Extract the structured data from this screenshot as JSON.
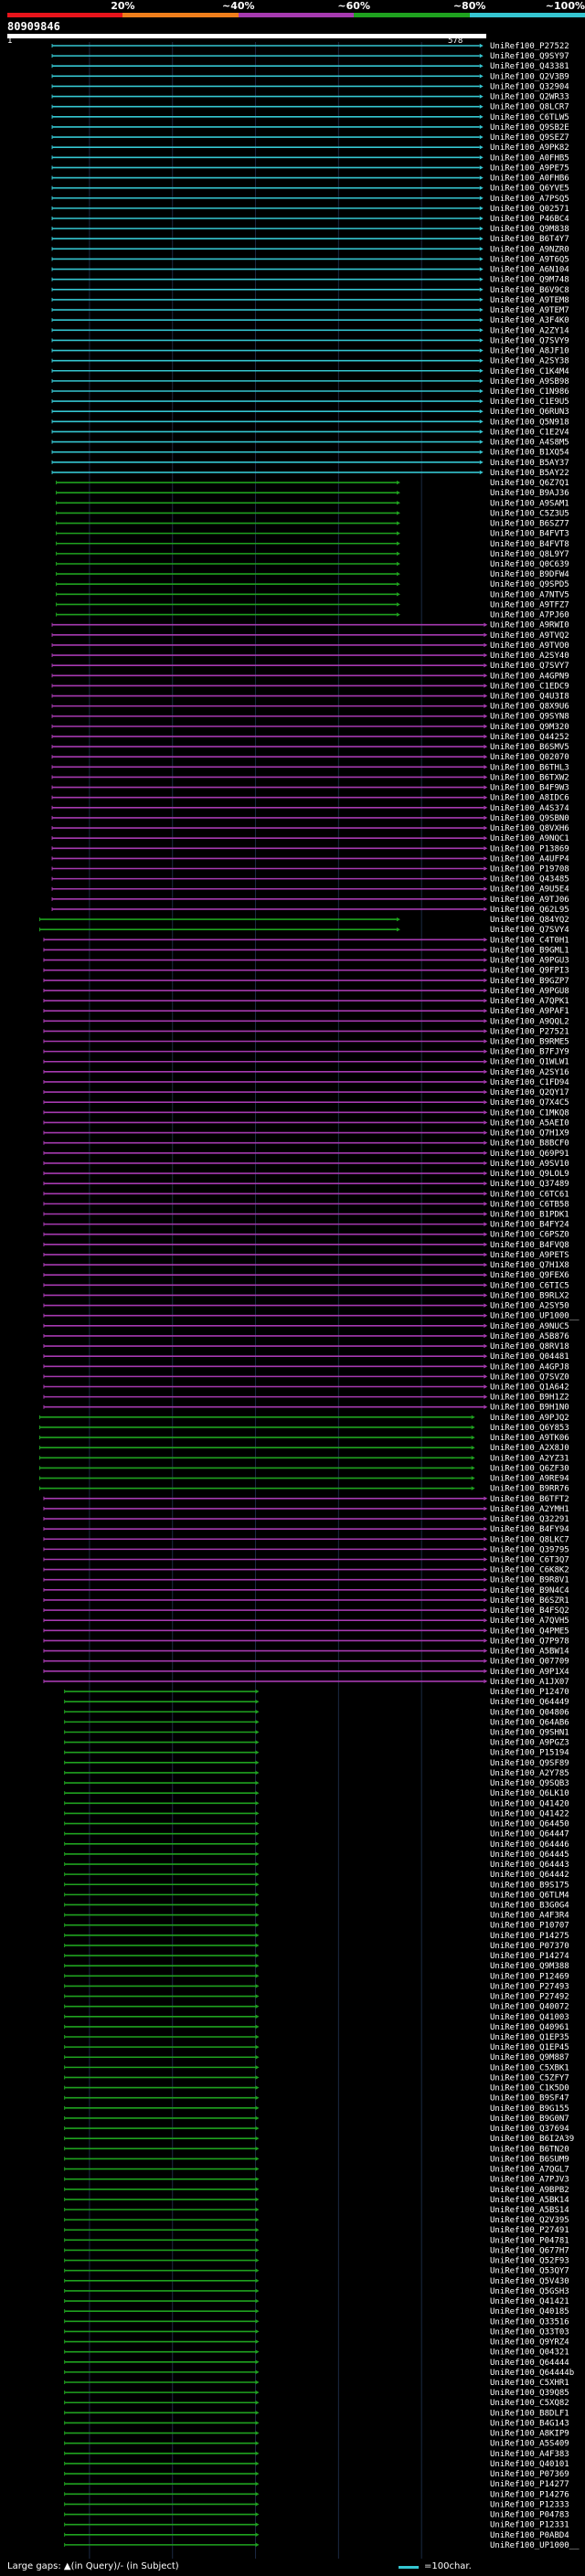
{
  "chart_data": {
    "type": "alignment-map",
    "title": "80909846",
    "query_length": 578,
    "axis_start_label": "1",
    "axis_end_label": "578",
    "scale": [
      {
        "label": "20%",
        "color": "#e8141b"
      },
      {
        "label": "~40%",
        "color": "#f07e1b"
      },
      {
        "label": "~60%",
        "color": "#a63ab0"
      },
      {
        "label": "~80%",
        "color": "#1fa21f"
      },
      {
        "label": "~100%",
        "color": "#35c6d1"
      }
    ],
    "groups": [
      {
        "start": 55,
        "end": 570,
        "color": "#35c6d1",
        "names": [
          "UniRef100_P27522",
          "UniRef100_Q9SY97",
          "UniRef100_Q43381",
          "UniRef100_Q2V3B9",
          "UniRef100_Q32904",
          "UniRef100_Q2WR33",
          "UniRef100_Q8LCR7",
          "UniRef100_C6TLW5",
          "UniRef100_Q9SB2E",
          "UniRef100_Q9SEZ7",
          "UniRef100_A9PK82",
          "UniRef100_A0FHB5",
          "UniRef100_A9PE75",
          "UniRef100_A0FHB6",
          "UniRef100_Q6YVE5",
          "UniRef100_A7PSQ5",
          "UniRef100_Q02571",
          "UniRef100_P46BC4",
          "UniRef100_Q9M838",
          "UniRef100_B6T4Y7",
          "UniRef100_A9NZR0",
          "UniRef100_A9T6Q5",
          "UniRef100_A6N104",
          "UniRef100_Q9M748",
          "UniRef100_B6V9C8",
          "UniRef100_A9TEM8",
          "UniRef100_A9TEM7",
          "UniRef100_A3F4K0",
          "UniRef100_A2ZY14",
          "UniRef100_Q7SVY9",
          "UniRef100_A8JF10",
          "UniRef100_A2SY38",
          "UniRef100_C1K4M4",
          "UniRef100_A9SB98",
          "UniRef100_C1N986",
          "UniRef100_C1E9U5",
          "UniRef100_Q6RUN3",
          "UniRef100_Q5N918",
          "UniRef100_C1E2V4",
          "UniRef100_A4S8M5",
          "UniRef100_B1XQ54",
          "UniRef100_B5AY37",
          "UniRef100_B5AY22"
        ]
      },
      {
        "start": 60,
        "end": 470,
        "color": "#1fa21f",
        "names": [
          "UniRef100_Q6Z7Q1",
          "UniRef100_B9AJ36",
          "UniRef100_A9SAM1",
          "UniRef100_C5Z3U5",
          "UniRef100_B6SZ77",
          "UniRef100_B4FVT3",
          "UniRef100_B4FVT8",
          "UniRef100_Q8L9Y7",
          "UniRef100_Q0C639",
          "UniRef100_B9DFW4",
          "UniRef100_Q9SPD5",
          "UniRef100_A7NTV5",
          "UniRef100_A9TFZ7",
          "UniRef100_A7PJ60"
        ]
      },
      {
        "start": 55,
        "end": 575,
        "color": "#a63ab0",
        "names": [
          "UniRef100_A9RWI0",
          "UniRef100_A9TVQ2",
          "UniRef100_A9TVO0",
          "UniRef100_A2SY40",
          "UniRef100_Q7SVY7",
          "UniRef100_A4GPN9",
          "UniRef100_C1EDC9",
          "UniRef100_Q4U3I8",
          "UniRef100_Q8X9U6",
          "UniRef100_Q9SYN8",
          "UniRef100_Q9M320",
          "UniRef100_Q44252",
          "UniRef100_B6SMV5",
          "UniRef100_Q02070",
          "UniRef100_B6THL3",
          "UniRef100_B6TXW2",
          "UniRef100_B4F9W3",
          "UniRef100_A8IDC6",
          "UniRef100_A4S374",
          "UniRef100_Q9SBN0",
          "UniRef100_Q8VXH6",
          "UniRef100_A9NQC1",
          "UniRef100_P13869",
          "UniRef100_A4UFP4",
          "UniRef100_P19708",
          "UniRef100_Q43485",
          "UniRef100_A9U5E4",
          "UniRef100_A9TJ06",
          "UniRef100_Q62L95"
        ]
      },
      {
        "start": 40,
        "end": 470,
        "color": "#1fa21f",
        "names": [
          "UniRef100_Q84YQ2",
          "UniRef100_Q7SVY4"
        ]
      },
      {
        "start": 45,
        "end": 575,
        "color": "#a63ab0",
        "names": [
          "UniRef100_C4T0H1",
          "UniRef100_B9GML1",
          "UniRef100_A9PGU3",
          "UniRef100_Q9FPI3",
          "UniRef100_B9GZP7",
          "UniRef100_A9PGU8",
          "UniRef100_A7QPK1",
          "UniRef100_A9PAF1",
          "UniRef100_A9QQL2",
          "UniRef100_P27521",
          "UniRef100_B9RME5",
          "UniRef100_B7FJY9",
          "UniRef100_Q1WLW1",
          "UniRef100_A2SY16",
          "UniRef100_C1FD94",
          "UniRef100_Q2QY17",
          "UniRef100_Q7X4C5",
          "UniRef100_C1MKQ8",
          "UniRef100_A5AEI0",
          "UniRef100_Q7H1X9",
          "UniRef100_B8BCF0",
          "UniRef100_Q69P91",
          "UniRef100_A9SV10",
          "UniRef100_Q9LOL9",
          "UniRef100_Q37489",
          "UniRef100_C6TC61",
          "UniRef100_C6TB58",
          "UniRef100_B1PDK1",
          "UniRef100_B4FY24",
          "UniRef100_C6PSZ0",
          "UniRef100_B4FVQ8",
          "UniRef100_A9PETS",
          "UniRef100_Q7H1X8",
          "UniRef100_Q9FEX6",
          "UniRef100_C6TIC5",
          "UniRef100_B9RLX2",
          "UniRef100_A2SY50",
          "UniRef100_UP1000__",
          "UniRef100_A9NUC5",
          "UniRef100_A5B876",
          "UniRef100_Q8RV18",
          "UniRef100_Q04481",
          "UniRef100_A4GPJ8",
          "UniRef100_Q7SVZ0",
          "UniRef100_Q1A642",
          "UniRef100_B9H1Z2",
          "UniRef100_B9H1N0"
        ]
      },
      {
        "start": 40,
        "end": 560,
        "color": "#1fa21f",
        "names": [
          "UniRef100_A9PJQ2",
          "UniRef100_Q6Y853",
          "UniRef100_A9TK06",
          "UniRef100_A2X8J0",
          "UniRef100_A2YZ31",
          "UniRef100_Q6ZF30",
          "UniRef100_A9RE94",
          "UniRef100_B9RR76"
        ]
      },
      {
        "start": 45,
        "end": 575,
        "color": "#a63ab0",
        "names": [
          "UniRef100_B6TFT2",
          "UniRef100_A2YMH1",
          "UniRef100_Q32291",
          "UniRef100_B4FY94",
          "UniRef100_Q8LKC7",
          "UniRef100_Q39795",
          "UniRef100_C6T3Q7",
          "UniRef100_C6K8K2",
          "UniRef100_B9R8V1",
          "UniRef100_B9N4C4",
          "UniRef100_B6SZR1",
          "UniRef100_B4FSQ2",
          "UniRef100_A7QVH5",
          "UniRef100_Q4PME5",
          "UniRef100_Q7P978",
          "UniRef100_A5BW14",
          "UniRef100_Q07709",
          "UniRef100_A9P1X4",
          "UniRef100_A1JX07"
        ]
      },
      {
        "start": 70,
        "end": 300,
        "color": "#1fa21f",
        "names": [
          "UniRef100_P12470",
          "UniRef100_Q64449",
          "UniRef100_Q04806",
          "UniRef100_Q64AB6",
          "UniRef100_Q9SHN1",
          "UniRef100_A9PGZ3",
          "UniRef100_P15194",
          "UniRef100_Q9SF89",
          "UniRef100_A2Y785",
          "UniRef100_Q9SQB3",
          "UniRef100_Q6LK10",
          "UniRef100_Q41420",
          "UniRef100_Q41422",
          "UniRef100_Q64450",
          "UniRef100_Q64447",
          "UniRef100_Q64446",
          "UniRef100_Q64445",
          "UniRef100_Q64443",
          "UniRef100_Q64442",
          "UniRef100_B9S175",
          "UniRef100_Q6TLM4",
          "UniRef100_B3G0G4",
          "UniRef100_A4F3R4",
          "UniRef100_P10707",
          "UniRef100_P14275",
          "UniRef100_P07370",
          "UniRef100_P14274",
          "UniRef100_Q9M388",
          "UniRef100_P12469",
          "UniRef100_P27493",
          "UniRef100_P27492",
          "UniRef100_Q40072",
          "UniRef100_Q41003",
          "UniRef100_Q40961",
          "UniRef100_Q1EP35",
          "UniRef100_Q1EP45",
          "UniRef100_Q9M887",
          "UniRef100_C5XBK1",
          "UniRef100_C5ZFY7",
          "UniRef100_C1K5D0",
          "UniRef100_B9SF47",
          "UniRef100_B9G155",
          "UniRef100_B9G0N7",
          "UniRef100_Q37694",
          "UniRef100_B6I2A39",
          "UniRef100_B6TN20",
          "UniRef100_B6SUM9",
          "UniRef100_A7QGL7",
          "UniRef100_A7PJV3",
          "UniRef100_A9BPB2",
          "UniRef100_A5BK14",
          "UniRef100_A5BS14",
          "UniRef100_Q2V395",
          "UniRef100_P27491",
          "UniRef100_P04781",
          "UniRef100_Q677H7",
          "UniRef100_Q52F93",
          "UniRef100_Q53QY7",
          "UniRef100_Q5V430",
          "UniRef100_Q5GSH3",
          "UniRef100_Q41421",
          "UniRef100_Q40185",
          "UniRef100_Q33516",
          "UniRef100_Q33T03",
          "UniRef100_Q9YRZ4",
          "UniRef100_Q04321",
          "UniRef100_Q64444",
          "UniRef100_Q64444b",
          "UniRef100_C5XHR1",
          "UniRef100_Q39Q85",
          "UniRef100_C5XQ82",
          "UniRef100_B8DLF1",
          "UniRef100_B4G143",
          "UniRef100_A8KIP9",
          "UniRef100_A5S409",
          "UniRef100_A4F383",
          "UniRef100_Q40101",
          "UniRef100_P07369",
          "UniRef100_P14277",
          "UniRef100_P14276",
          "UniRef100_P12333",
          "UniRef100_P04783",
          "UniRef100_P12331",
          "UniRef100_P0ABD4",
          "UniRef100_UP1000__"
        ]
      }
    ],
    "x_axis": {
      "min": 1,
      "max": 578
    }
  },
  "legend": {
    "left_text": "Large gaps: ▲(in Query)/- (in Subject)",
    "right_text": "=100char."
  }
}
